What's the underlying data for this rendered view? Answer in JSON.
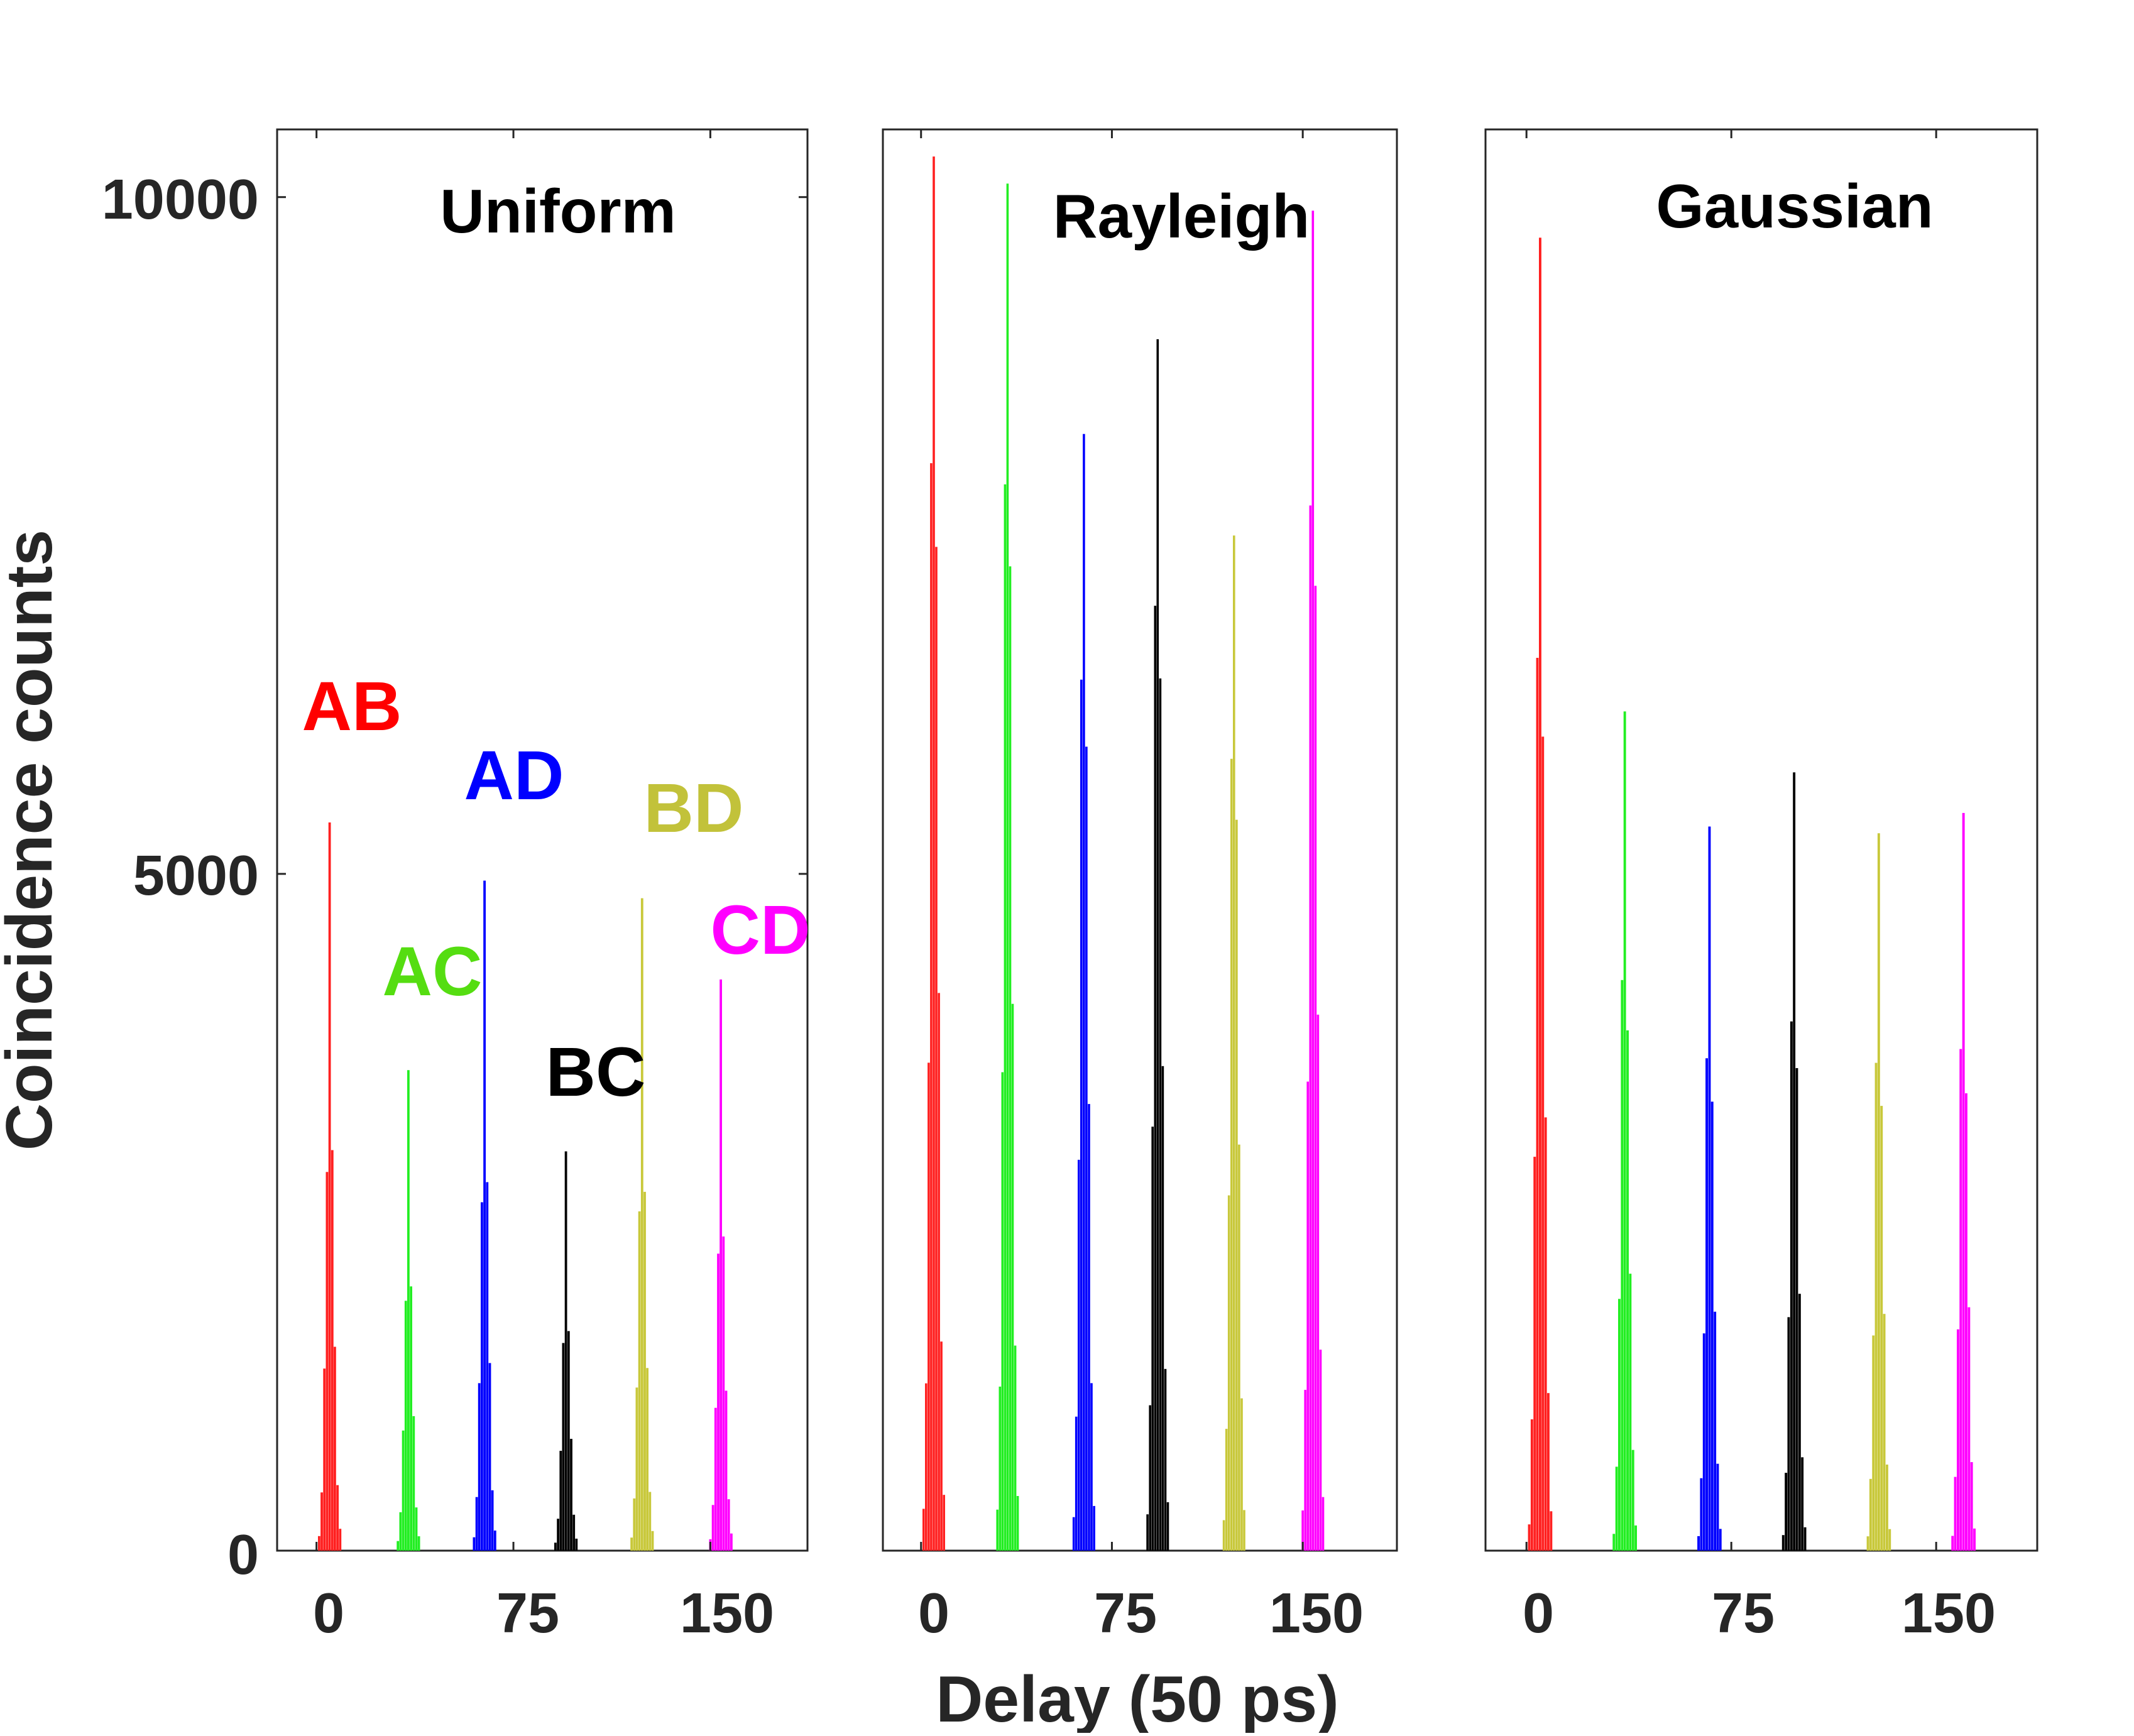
{
  "chart_data": {
    "type": "bar",
    "subtype": "histogram",
    "xlabel": "Delay (50 ps)",
    "ylabel": "Coincidence counts",
    "xlim": [
      -15,
      187
    ],
    "ylim": [
      0,
      10500
    ],
    "xticks": [
      0,
      75,
      150
    ],
    "yticks": [
      0,
      5000,
      10000
    ],
    "grid": false,
    "pair_labels": [
      {
        "text": "AB",
        "color": "#ff0000"
      },
      {
        "text": "AC",
        "color": "#55dd11"
      },
      {
        "text": "AD",
        "color": "#0000ff"
      },
      {
        "text": "BC",
        "color": "#000000"
      },
      {
        "text": "BD",
        "color": "#c2c23a"
      },
      {
        "text": "CD",
        "color": "#ff00ff"
      }
    ],
    "series_colors": [
      "#ff2020",
      "#22ee22",
      "#0000ff",
      "#000000",
      "#c8c83a",
      "#ff00ff"
    ],
    "panels": [
      {
        "title": "Uniform",
        "series": [
          {
            "name": "AB",
            "center": 5,
            "peak": 5380
          },
          {
            "name": "AC",
            "center": 35,
            "peak": 3550
          },
          {
            "name": "AD",
            "center": 64,
            "peak": 4950
          },
          {
            "name": "BC",
            "center": 95,
            "peak": 2950
          },
          {
            "name": "BD",
            "center": 124,
            "peak": 4820
          },
          {
            "name": "CD",
            "center": 154,
            "peak": 4220
          }
        ]
      },
      {
        "title": "Rayleigh",
        "series": [
          {
            "name": "AB",
            "center": 5,
            "peak": 10300
          },
          {
            "name": "AC",
            "center": 34,
            "peak": 10100
          },
          {
            "name": "AD",
            "center": 64,
            "peak": 8250
          },
          {
            "name": "BC",
            "center": 93,
            "peak": 8950
          },
          {
            "name": "BD",
            "center": 123,
            "peak": 7500
          },
          {
            "name": "CD",
            "center": 154,
            "peak": 9900
          }
        ]
      },
      {
        "title": "Gaussian",
        "series": [
          {
            "name": "AB",
            "center": 5,
            "peak": 9700
          },
          {
            "name": "AC",
            "center": 36,
            "peak": 6200
          },
          {
            "name": "AD",
            "center": 67,
            "peak": 5350
          },
          {
            "name": "BC",
            "center": 98,
            "peak": 5750
          },
          {
            "name": "BD",
            "center": 129,
            "peak": 5300
          },
          {
            "name": "CD",
            "center": 160,
            "peak": 5450
          }
        ]
      }
    ]
  }
}
